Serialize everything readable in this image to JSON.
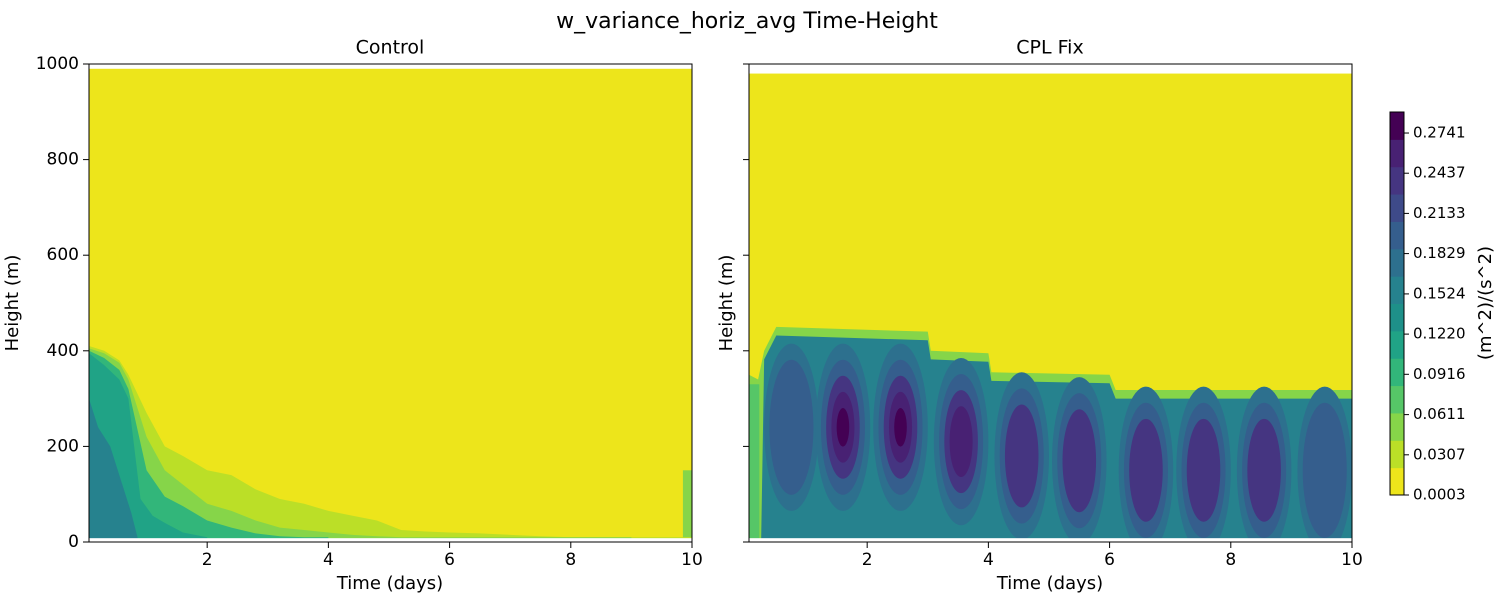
{
  "figure": {
    "suptitle": "w_variance_horiz_avg Time-Height"
  },
  "chart_data": [
    {
      "type": "heatmap",
      "title": "Control",
      "xlabel": "Time (days)",
      "ylabel": "Height (m)",
      "xlim": [
        0.05,
        10
      ],
      "ylim": [
        0,
        1000
      ],
      "xticks": [
        2,
        4,
        6,
        8,
        10
      ],
      "yticks": [
        0,
        200,
        400,
        600,
        800,
        1000
      ],
      "domain_top": 990,
      "series": [
        {
          "level": 0.0307,
          "x": [
            0.05,
            0.3,
            0.55,
            0.7,
            1.0,
            1.3,
            1.6,
            2.0,
            2.4,
            2.8,
            3.2,
            3.6,
            4.0,
            4.4,
            4.8,
            5.2,
            5.6,
            6.0,
            6.5,
            7.0,
            7.5,
            8.0,
            8.5,
            9.0,
            9.5,
            10.0
          ],
          "y": [
            410,
            400,
            380,
            350,
            270,
            200,
            180,
            150,
            140,
            110,
            90,
            80,
            65,
            55,
            45,
            25,
            22,
            20,
            18,
            15,
            12,
            10,
            10,
            10,
            10,
            10
          ]
        },
        {
          "level": 0.0611,
          "x": [
            0.05,
            0.3,
            0.55,
            0.7,
            1.0,
            1.3,
            1.6,
            2.0,
            2.4,
            2.8,
            3.2,
            3.6,
            4.0,
            4.4,
            4.8,
            5.2,
            5.6,
            6.0,
            6.5,
            7.0,
            7.5,
            8.0,
            8.5,
            9.0
          ],
          "y": [
            405,
            395,
            375,
            340,
            220,
            150,
            120,
            80,
            65,
            45,
            30,
            25,
            20,
            15,
            12,
            10,
            10,
            10,
            10,
            10,
            10,
            10,
            10,
            10
          ]
        },
        {
          "level": 0.0916,
          "x": [
            0.05,
            0.3,
            0.55,
            0.7,
            1.0,
            1.3,
            1.6,
            2.0,
            2.4,
            2.8,
            3.2,
            3.6,
            4.0
          ],
          "y": [
            400,
            385,
            360,
            320,
            150,
            95,
            75,
            45,
            30,
            18,
            12,
            10,
            10
          ]
        },
        {
          "level": 0.122,
          "x": [
            0.05,
            0.3,
            0.55,
            0.7,
            0.9,
            1.1,
            1.3,
            1.6,
            2.0
          ],
          "y": [
            395,
            370,
            340,
            300,
            90,
            55,
            40,
            20,
            10
          ]
        },
        {
          "level": 0.1524,
          "x": [
            0.05,
            0.2,
            0.4,
            0.6,
            0.75,
            0.85
          ],
          "y": [
            300,
            240,
            200,
            120,
            60,
            10
          ]
        }
      ],
      "edge_feature": {
        "x": [
          9.85,
          10.0
        ],
        "y": [
          10,
          150
        ]
      }
    },
    {
      "type": "heatmap",
      "title": "CPL Fix",
      "xlabel": "Time (days)",
      "ylabel": "Height (m)",
      "xlim": [
        0.05,
        10
      ],
      "ylim": [
        0,
        1000
      ],
      "xticks": [
        2,
        4,
        6,
        8,
        10
      ],
      "yticks": [
        0,
        200,
        400,
        600,
        800,
        1000
      ],
      "domain_top": 980,
      "series": [
        {
          "name": "",
          "x": [
            0.05,
            0.2,
            0.3,
            0.5,
            3.0,
            3.05,
            4.0,
            4.05,
            6.0,
            6.1,
            10.0
          ],
          "y": [
            350,
            340,
            400,
            450,
            440,
            400,
            395,
            355,
            350,
            318,
            318
          ]
        }
      ],
      "cores": [
        {
          "x": 0.75,
          "y": 240,
          "peak": 0.22
        },
        {
          "x": 1.6,
          "y": 240,
          "peak": 0.28
        },
        {
          "x": 2.55,
          "y": 240,
          "peak": 0.28
        },
        {
          "x": 3.55,
          "y": 210,
          "peak": 0.26
        },
        {
          "x": 4.55,
          "y": 180,
          "peak": 0.25
        },
        {
          "x": 5.5,
          "y": 170,
          "peak": 0.25
        },
        {
          "x": 6.6,
          "y": 150,
          "peak": 0.23
        },
        {
          "x": 7.55,
          "y": 150,
          "peak": 0.23
        },
        {
          "x": 8.55,
          "y": 150,
          "peak": 0.23
        },
        {
          "x": 9.55,
          "y": 150,
          "peak": 0.22
        }
      ]
    }
  ],
  "colorbar": {
    "label": "(m^2)/(s^2)",
    "min": 0.0003,
    "max": 0.29,
    "ticks": [
      "0.0003",
      "0.0307",
      "0.0611",
      "0.0916",
      "0.1220",
      "0.1524",
      "0.1829",
      "0.2133",
      "0.2437",
      "0.2741"
    ],
    "colors": [
      "#ede51b",
      "#bbdf27",
      "#86d549",
      "#56c667",
      "#32b67a",
      "#20a386",
      "#1e9089",
      "#26828e",
      "#2d708e",
      "#355e8d",
      "#3e4a89",
      "#453581",
      "#482173",
      "#440154"
    ]
  }
}
